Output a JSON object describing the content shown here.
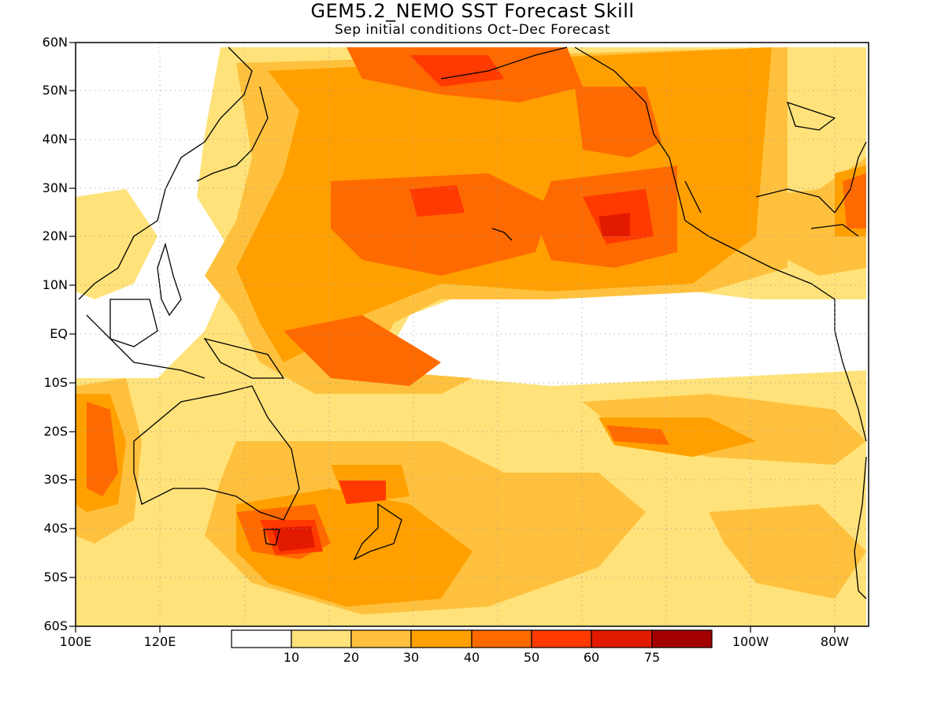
{
  "title": "GEM5.2_NEMO SST Forecast Skill",
  "subtitle": "Sep initial conditions  Oct–Dec Forecast",
  "axes": {
    "lat_labels": [
      "60N",
      "50N",
      "40N",
      "30N",
      "20N",
      "10N",
      "EQ",
      "10S",
      "20S",
      "30S",
      "40S",
      "50S",
      "60S"
    ],
    "lon_labels": [
      "100E",
      "120E",
      "100W",
      "80W"
    ],
    "lat_range": [
      -60,
      60
    ],
    "lon_range_note": "100E to 70W across the dateline",
    "grid": "dotted"
  },
  "colorbar": {
    "colors": [
      "#ffffff",
      "#ffe27a",
      "#ffc13d",
      "#ffa000",
      "#ff6a00",
      "#ff3a00",
      "#e11a00",
      "#a50000"
    ],
    "labels": [
      "10",
      "20",
      "30",
      "40",
      "50",
      "60",
      "75"
    ]
  },
  "regions": {
    "north_pacific": "high skill 40-75",
    "central_equatorial_pacific": "low skill < 10",
    "tasmania_area": "maximum 60-75"
  }
}
